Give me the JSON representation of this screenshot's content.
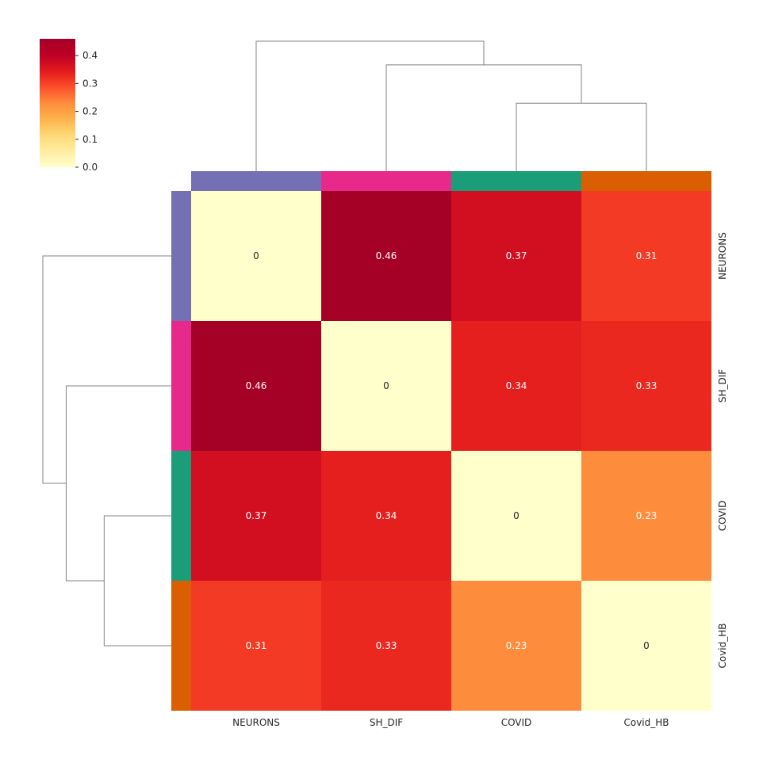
{
  "chart_data": {
    "type": "heatmap",
    "title": "",
    "xlabel": "",
    "ylabel": "",
    "labels": [
      "NEURONS",
      "SH_DIF",
      "COVID",
      "Covid_HB"
    ],
    "matrix": [
      [
        0,
        0.46,
        0.37,
        0.31
      ],
      [
        0.46,
        0,
        0.34,
        0.33
      ],
      [
        0.37,
        0.34,
        0,
        0.23
      ],
      [
        0.31,
        0.33,
        0.23,
        0
      ]
    ],
    "annotations": [
      [
        "0",
        "0.46",
        "0.37",
        "0.31"
      ],
      [
        "0.46",
        "0",
        "0.34",
        "0.33"
      ],
      [
        "0.37",
        "0.34",
        "0",
        "0.23"
      ],
      [
        "0.31",
        "0.33",
        "0.23",
        "0"
      ]
    ],
    "group_colors": [
      "#7570b3",
      "#e7298a",
      "#1b9e77",
      "#d95f02"
    ],
    "colormap": "YlOrRd",
    "vmin": 0,
    "vmax": 0.46,
    "colorbar": {
      "ticks": [
        0.0,
        0.1,
        0.2,
        0.3,
        0.4
      ],
      "tick_labels": [
        "0.0",
        "0.1",
        "0.2",
        "0.3",
        "0.4"
      ],
      "placement": "top-left"
    },
    "dendrogram": {
      "linkage": [
        {
          "a": "COVID",
          "b": "Covid_HB",
          "height": 0.23
        },
        {
          "a": "SH_DIF",
          "b": "COVID+Covid_HB",
          "height": 0.36
        },
        {
          "a": "NEURONS",
          "b": "SH_DIF+COVID+Covid_HB",
          "height": 0.44
        }
      ],
      "placement": [
        "top",
        "left"
      ]
    }
  }
}
